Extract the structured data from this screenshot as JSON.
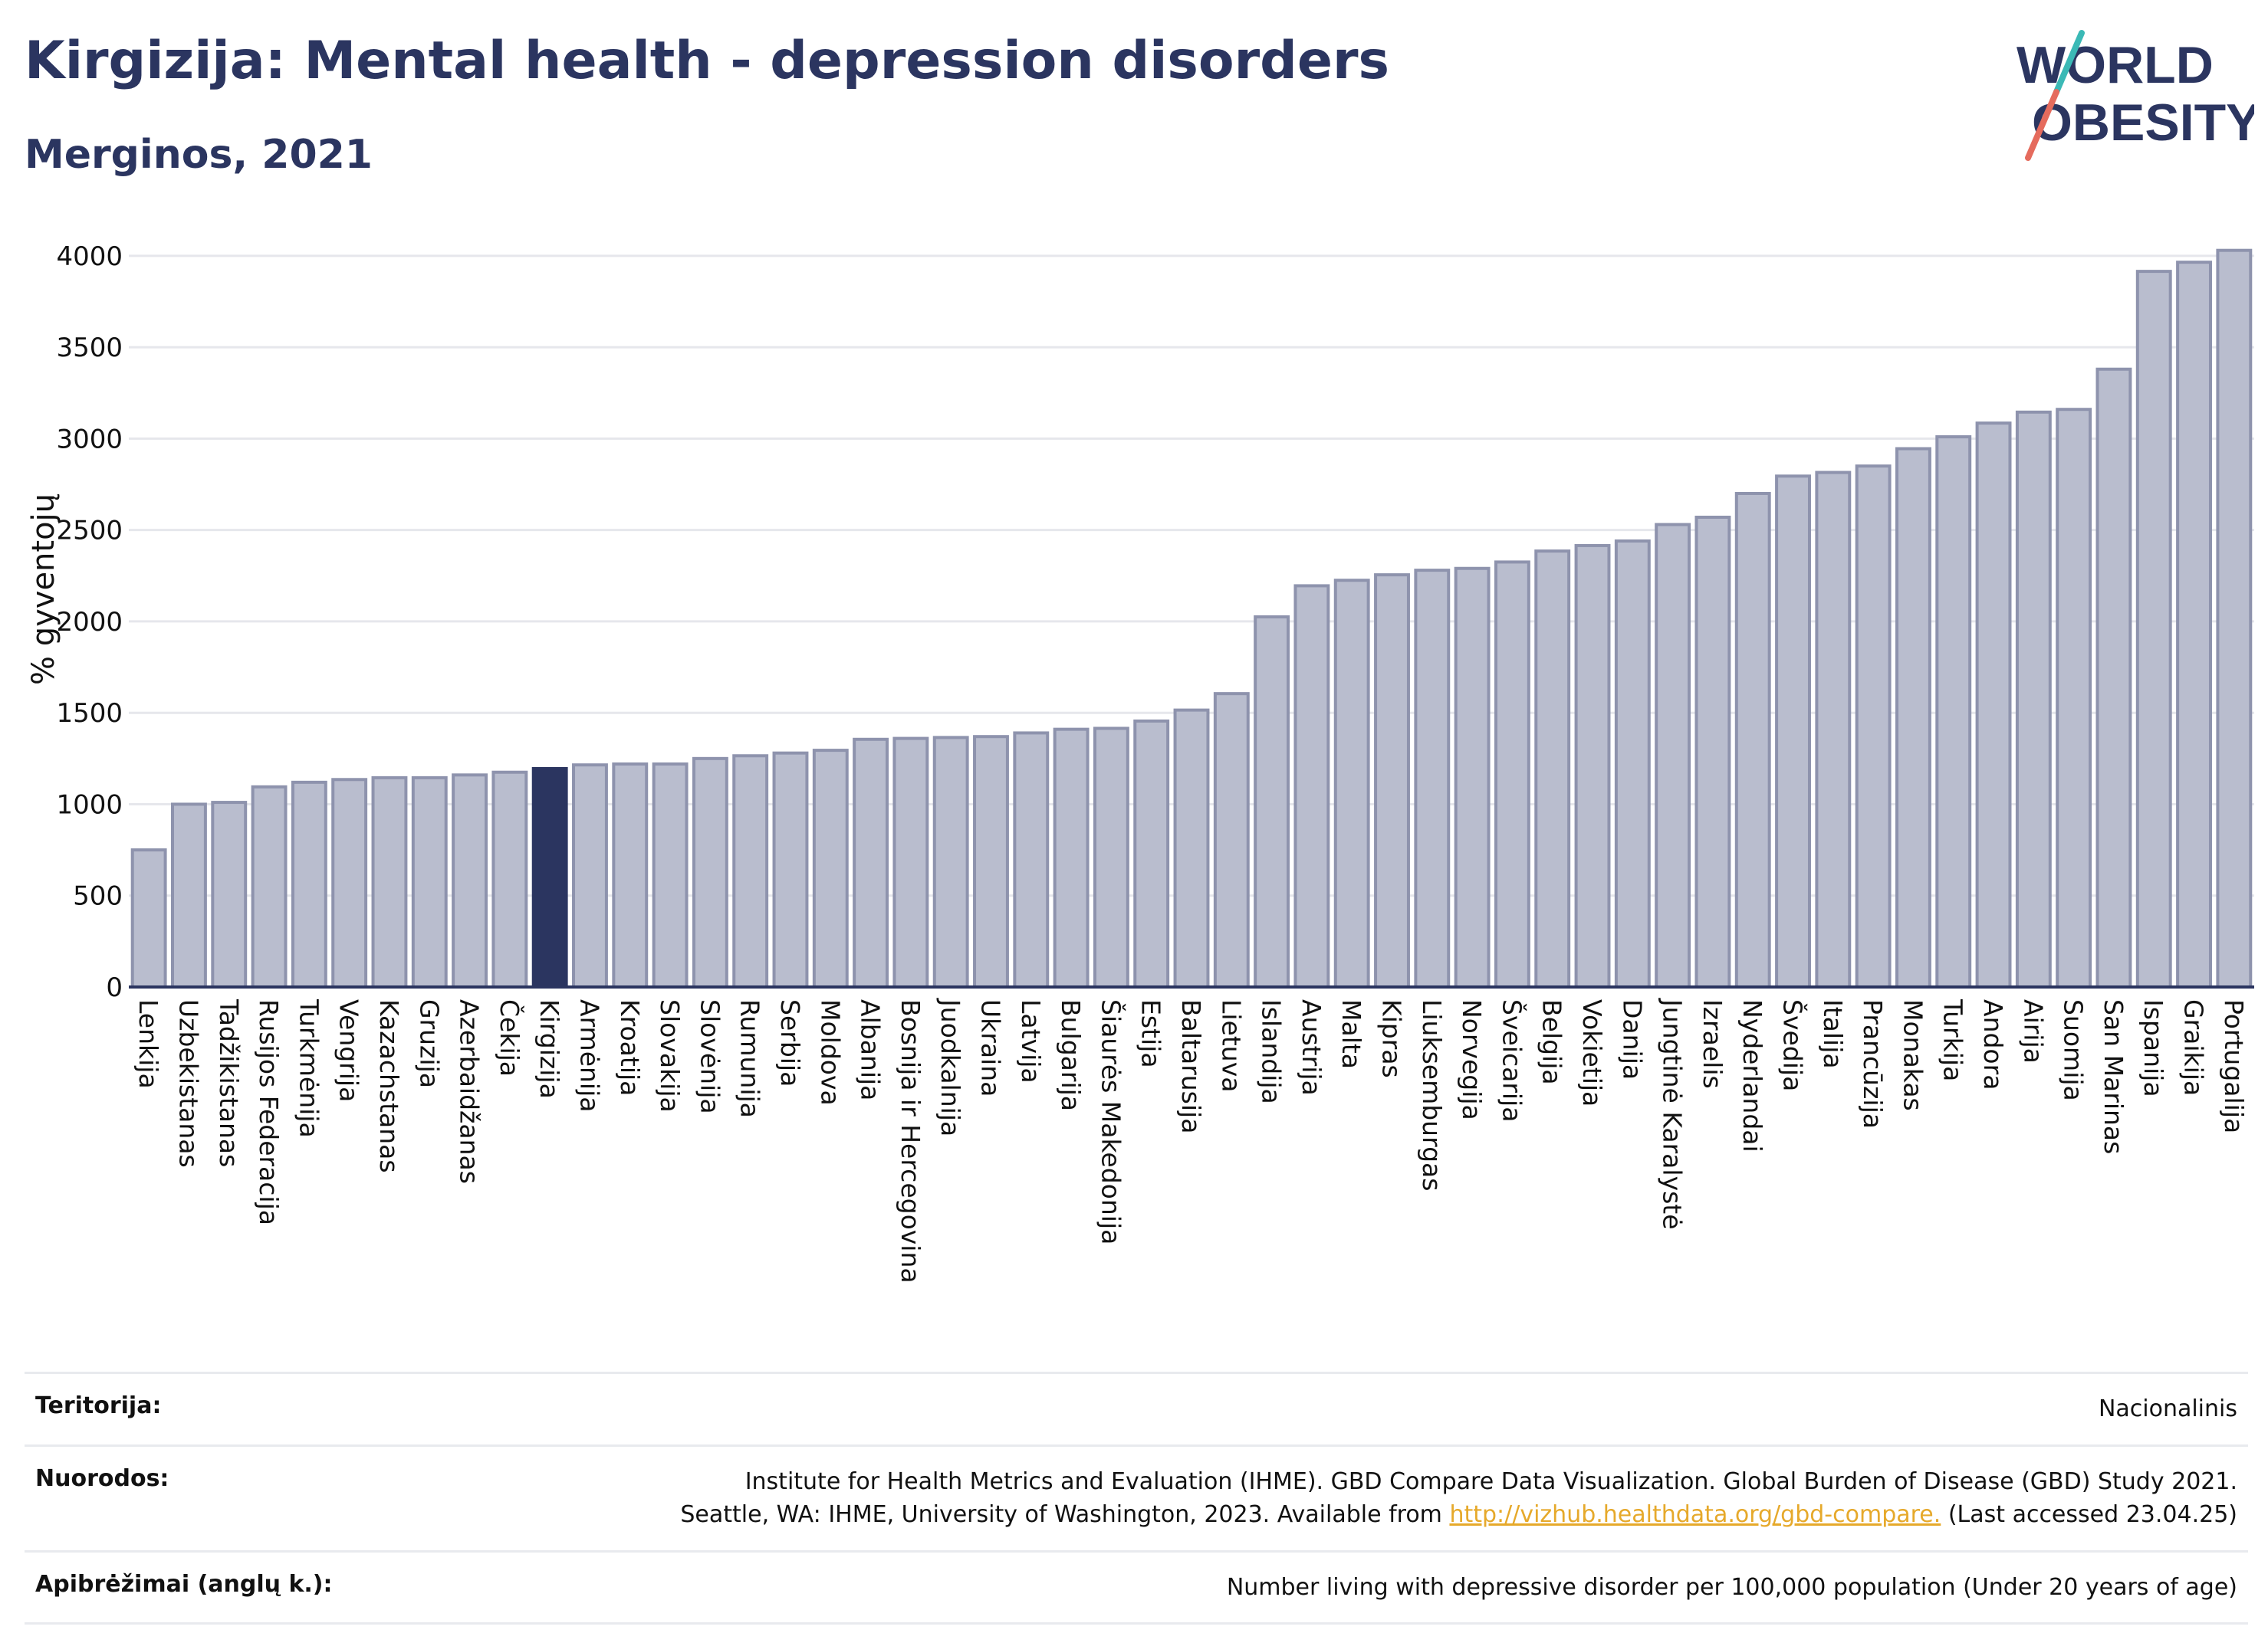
{
  "header": {
    "title": "Kirgizija: Mental health - depression disorders",
    "subtitle": "Merginos, 2021"
  },
  "logo": {
    "line1": "WORLD",
    "line2": "OBESITY"
  },
  "colors": {
    "bar": "#b9bdce",
    "bar_border": "#8e93ad",
    "highlight": "#2b3560",
    "accent_teal": "#3bb9b6",
    "accent_red": "#e56b5d"
  },
  "chart_data": {
    "type": "bar",
    "ylabel": "% gyventojų",
    "ylim": [
      0,
      4100
    ],
    "yticks": [
      0,
      500,
      1000,
      1500,
      2000,
      2500,
      3000,
      3500,
      4000
    ],
    "highlight": "Kirgizija",
    "categories": [
      "Lenkija",
      "Uzbekistanas",
      "Tadžikistanas",
      "Rusijos Federacija",
      "Turkmėnija",
      "Vengrija",
      "Kazachstanas",
      "Gruzija",
      "Azerbaidžanas",
      "Čekija",
      "Kirgizija",
      "Armėnija",
      "Kroatija",
      "Slovakija",
      "Slovėnija",
      "Rumunija",
      "Serbija",
      "Moldova",
      "Albanija",
      "Bosnija ir Hercegovina",
      "Juodkalnija",
      "Ukraina",
      "Latvija",
      "Bulgarija",
      "Šiaurės Makedonija",
      "Estija",
      "Baltarusija",
      "Lietuva",
      "Islandija",
      "Austrija",
      "Malta",
      "Kipras",
      "Liuksemburgas",
      "Norvegija",
      "Šveicarija",
      "Belgija",
      "Vokietija",
      "Danija",
      "Jungtinė Karalystė",
      "Izraelis",
      "Nyderlandai",
      "Švedija",
      "Italija",
      "Prancūzija",
      "Monakas",
      "Turkija",
      "Andora",
      "Airija",
      "Suomija",
      "San Marinas",
      "Ispanija",
      "Graikija",
      "Portugalija"
    ],
    "values": [
      750,
      1000,
      1010,
      1095,
      1120,
      1135,
      1145,
      1145,
      1160,
      1175,
      1195,
      1215,
      1220,
      1220,
      1250,
      1265,
      1280,
      1295,
      1355,
      1360,
      1365,
      1370,
      1390,
      1410,
      1415,
      1455,
      1515,
      1605,
      2025,
      2195,
      2225,
      2255,
      2280,
      2290,
      2325,
      2385,
      2415,
      2440,
      2530,
      2570,
      2700,
      2795,
      2815,
      2850,
      2945,
      3010,
      3085,
      3145,
      3160,
      3380,
      3915,
      3965,
      4030
    ]
  },
  "footer": {
    "rows": [
      {
        "key": "Teritorija:",
        "value": "Nacionalinis"
      },
      {
        "key": "Nuorodos:",
        "value_line1": "Institute for Health Metrics and Evaluation (IHME). GBD Compare Data Visualization. Global Burden of Disease (GBD) Study 2021.",
        "value_line2_pre": "Seattle, WA: IHME, University of Washington, 2023. Available from ",
        "link": "http://vizhub.healthdata.org/gbd-compare.",
        "value_line2_post": " (Last accessed 23.04.25)"
      },
      {
        "key": "Apibrėžimai (anglų k.):",
        "value": "Number living with depressive disorder per 100,000 population (Under 20 years of age)"
      }
    ]
  }
}
